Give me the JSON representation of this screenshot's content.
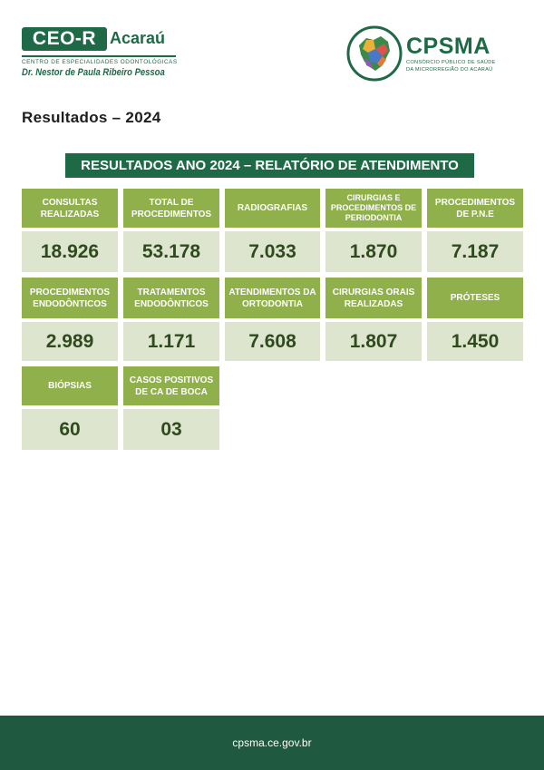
{
  "header": {
    "ceo_logo": {
      "mark": "CEO-R",
      "city": "Acaraú",
      "subtitle": "CENTRO DE ESPECIALIDADES ODONTOLÓGICAS",
      "name": "Dr. Nestor de Paula Ribeiro Pessoa"
    },
    "cpsma_logo": {
      "name": "CPSMA",
      "subtitle_line1": "CONSÓRCIO PÚBLICO DE SAÚDE",
      "subtitle_line2": "DA MICRORREGIÃO DO ACARAÚ"
    }
  },
  "title": "Resultados – 2024",
  "banner": "RESULTADOS ANO 2024 – RELATÓRIO DE ATENDIMENTO",
  "metrics": [
    {
      "label": "CONSULTAS REALIZADAS",
      "value": "18.926"
    },
    {
      "label": "TOTAL DE PROCEDIMENTOS",
      "value": "53.178"
    },
    {
      "label": "RADIOGRAFIAS",
      "value": "7.033"
    },
    {
      "label": "CIRURGIAS E PROCEDIMENTOS DE PERIODONTIA",
      "value": "1.870"
    },
    {
      "label": "PROCEDIMENTOS DE P.N.E",
      "value": "7.187"
    },
    {
      "label": "PROCEDIMENTOS ENDODÔNTICOS",
      "value": "2.989"
    },
    {
      "label": "TRATAMENTOS ENDODÔNTICOS",
      "value": "1.171"
    },
    {
      "label": "ATENDIMENTOS DA ORTODONTIA",
      "value": "7.608"
    },
    {
      "label": "CIRURGIAS ORAIS REALIZADAS",
      "value": "1.807"
    },
    {
      "label": "PRÓTESES",
      "value": "1.450"
    },
    {
      "label": "BIÓPSIAS",
      "value": "60"
    },
    {
      "label": "CASOS POSITIVOS DE CA DE BOCA",
      "value": "03"
    }
  ],
  "footer": {
    "url": "cpsma.ce.gov.br"
  },
  "colors": {
    "primary_green": "#1f6a46",
    "label_green": "#8fb04a",
    "value_bg": "#dde5cf",
    "footer_green": "#1f5a40"
  }
}
